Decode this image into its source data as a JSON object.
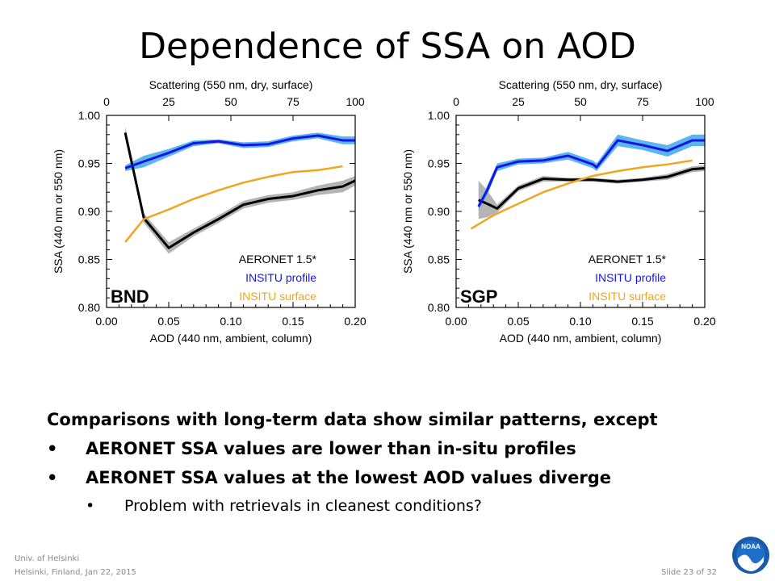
{
  "slide": {
    "title": "Dependence of SSA on AOD",
    "lead": "Comparisons with long-term data show similar patterns, except",
    "bullets": [
      "AERONET SSA values are lower than in-situ profiles",
      "AERONET SSA values at the lowest AOD values diverge"
    ],
    "sub_bullet": "Problem with retrievals in cleanest conditions?",
    "bullet_marker": "•",
    "footer_line1": "Univ. of Helsinki",
    "footer_line2": "Helsinki, Finland, Jan 22, 2015",
    "slide_number": "Slide 23 of 32",
    "logo_text": "NOAA"
  },
  "chart_data": [
    {
      "type": "line",
      "site": "BND",
      "xlabel": "AOD (440  nm, ambient, column)",
      "ylabel": "SSA (440 nm or 550 nm)",
      "top_axis_label": "Scattering (550 nm, dry, surface)",
      "xlim": [
        0,
        0.2
      ],
      "ylim": [
        0.8,
        1.0
      ],
      "top_xlim": [
        0,
        100
      ],
      "x_ticks": [
        "0.00",
        "0.05",
        "0.10",
        "0.15",
        "0.20"
      ],
      "y_ticks": [
        "0.80",
        "0.85",
        "0.90",
        "0.95",
        "1.00"
      ],
      "top_ticks": [
        "0",
        "25",
        "50",
        "75",
        "100"
      ],
      "legend_position": "bottom-right",
      "series": [
        {
          "name": "AERONET 1.5*",
          "color": "#000000",
          "band_color": "#b4b4b4",
          "x": [
            0.015,
            0.03,
            0.05,
            0.07,
            0.09,
            0.11,
            0.13,
            0.15,
            0.17,
            0.19,
            0.2
          ],
          "y": [
            0.982,
            0.893,
            0.862,
            0.878,
            0.892,
            0.907,
            0.913,
            0.916,
            0.922,
            0.926,
            0.932
          ],
          "band": [
            0.006,
            0.005,
            0.006,
            0.004,
            0.004,
            0.004,
            0.004,
            0.004,
            0.005,
            0.006,
            0.005
          ]
        },
        {
          "name": "INSITU profile",
          "color": "#1515e8",
          "band_color": "#5cb6ee",
          "x": [
            0.015,
            0.03,
            0.05,
            0.07,
            0.09,
            0.11,
            0.13,
            0.15,
            0.17,
            0.19,
            0.2
          ],
          "y": [
            0.945,
            0.952,
            0.961,
            0.971,
            0.973,
            0.969,
            0.97,
            0.976,
            0.979,
            0.974,
            0.974
          ],
          "band": [
            0.003,
            0.006,
            0.004,
            0.003,
            0.002,
            0.003,
            0.003,
            0.003,
            0.003,
            0.004,
            0.004
          ]
        },
        {
          "name": "INSITU surface",
          "color": "#f0a51e",
          "x": [
            0.015,
            0.03,
            0.05,
            0.07,
            0.09,
            0.11,
            0.13,
            0.15,
            0.17,
            0.19
          ],
          "y": [
            0.868,
            0.892,
            0.902,
            0.913,
            0.922,
            0.93,
            0.936,
            0.941,
            0.943,
            0.947
          ]
        }
      ]
    },
    {
      "type": "line",
      "site": "SGP",
      "xlabel": "AOD (440  nm, ambient, column)",
      "ylabel": "SSA (440 nm or 550 nm)",
      "top_axis_label": "Scattering (550 nm, dry, surface)",
      "xlim": [
        0,
        0.2
      ],
      "ylim": [
        0.8,
        1.0
      ],
      "top_xlim": [
        0,
        100
      ],
      "x_ticks": [
        "0.00",
        "0.05",
        "0.10",
        "0.15",
        "0.20"
      ],
      "y_ticks": [
        "0.80",
        "0.85",
        "0.90",
        "0.95",
        "1.00"
      ],
      "top_ticks": [
        "0",
        "25",
        "50",
        "75",
        "100"
      ],
      "legend_position": "bottom-right",
      "series": [
        {
          "name": "AERONET 1.5*",
          "color": "#000000",
          "band_color": "#b4b4b4",
          "x": [
            0.018,
            0.025,
            0.033,
            0.05,
            0.07,
            0.09,
            0.11,
            0.13,
            0.15,
            0.17,
            0.19,
            0.2
          ],
          "y": [
            0.912,
            0.908,
            0.903,
            0.924,
            0.934,
            0.933,
            0.933,
            0.931,
            0.933,
            0.936,
            0.944,
            0.945
          ],
          "band": [
            0.02,
            0.014,
            0.004,
            0.003,
            0.003,
            0.002,
            0.002,
            0.002,
            0.002,
            0.003,
            0.003,
            0.003
          ]
        },
        {
          "name": "INSITU profile",
          "color": "#1515e8",
          "band_color": "#5cb6ee",
          "x": [
            0.018,
            0.025,
            0.033,
            0.05,
            0.07,
            0.09,
            0.11,
            0.113,
            0.13,
            0.15,
            0.17,
            0.19,
            0.2
          ],
          "y": [
            0.905,
            0.922,
            0.946,
            0.952,
            0.953,
            0.958,
            0.949,
            0.946,
            0.974,
            0.969,
            0.963,
            0.974,
            0.974
          ],
          "band": [
            0.004,
            0.005,
            0.004,
            0.003,
            0.003,
            0.004,
            0.004,
            0.004,
            0.006,
            0.005,
            0.006,
            0.006,
            0.006
          ]
        },
        {
          "name": "INSITU surface",
          "color": "#f0a51e",
          "x": [
            0.012,
            0.03,
            0.05,
            0.07,
            0.09,
            0.11,
            0.13,
            0.15,
            0.17,
            0.19
          ],
          "y": [
            0.882,
            0.896,
            0.908,
            0.92,
            0.929,
            0.937,
            0.942,
            0.946,
            0.949,
            0.953
          ]
        }
      ]
    }
  ]
}
